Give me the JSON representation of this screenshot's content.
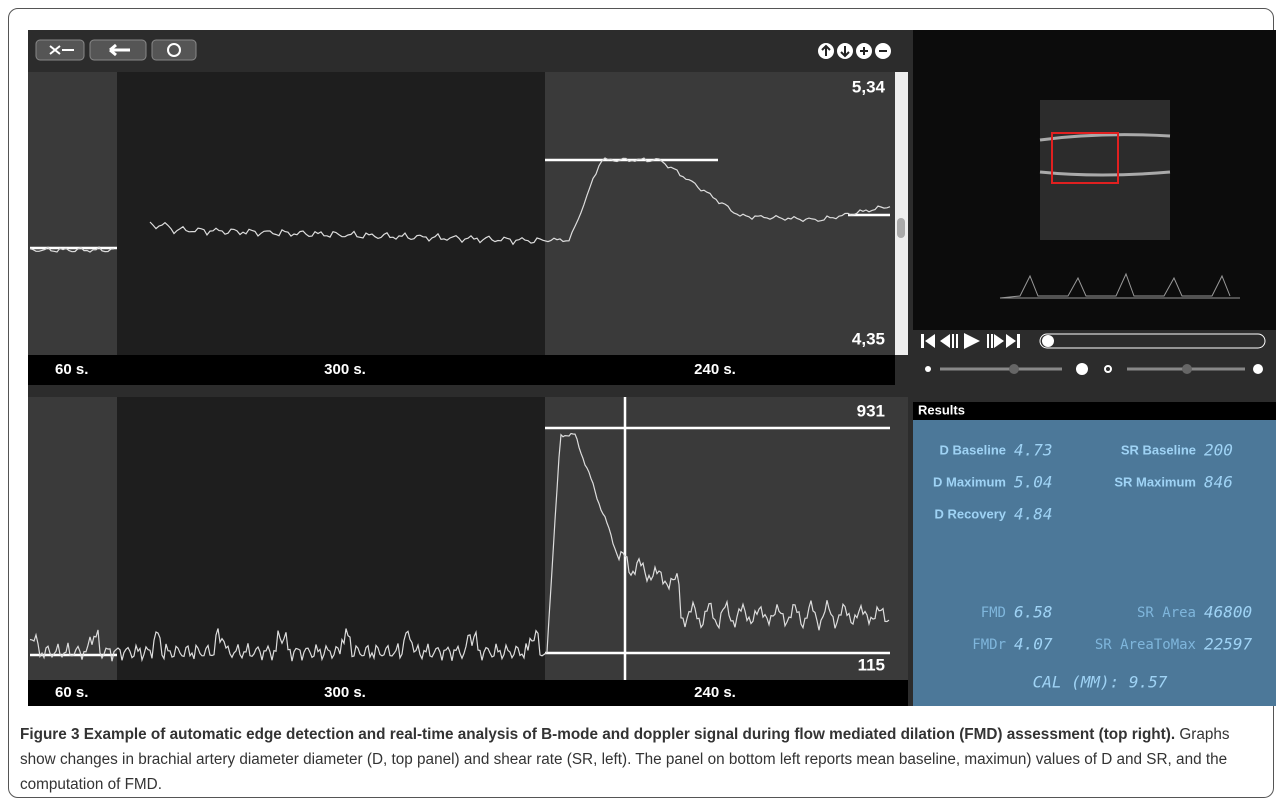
{
  "top_panel": {
    "max_label": "5,34",
    "min_label": "4,35",
    "segments": [
      "60 s.",
      "300 s.",
      "240 s."
    ]
  },
  "bottom_panel": {
    "max_label": "931",
    "min_label": "115",
    "segments": [
      "60 s.",
      "300 s.",
      "240 s."
    ]
  },
  "results": {
    "title": "Results",
    "left": [
      {
        "label": "D Baseline",
        "value": "4.73"
      },
      {
        "label": "D Maximum",
        "value": "5.04"
      },
      {
        "label": "D Recovery",
        "value": "4.84"
      }
    ],
    "right": [
      {
        "label": "SR Baseline",
        "value": "200"
      },
      {
        "label": "SR Maximum",
        "value": "846"
      }
    ],
    "fmd": [
      {
        "label": "FMD",
        "value": "6.58"
      },
      {
        "label": "FMDr",
        "value": "4.07"
      }
    ],
    "sr": [
      {
        "label": "SR Area",
        "value": "46800"
      },
      {
        "label": "SR AreaToMax",
        "value": "22597"
      }
    ],
    "cal": "CAL (MM): 9.57"
  },
  "caption": {
    "figure": "Figure 3",
    "title": "Example of automatic edge detection and real-time analysis of B-mode and doppler signal during flow mediated dilation (FMD) assessment (top right).",
    "text": "Graphs show changes in brachial artery diameter diameter (D, top panel) and shear rate (SR, left). The panel on bottom left reports mean baseline, maximun) values of D and SR, and the computation of FMD."
  }
}
